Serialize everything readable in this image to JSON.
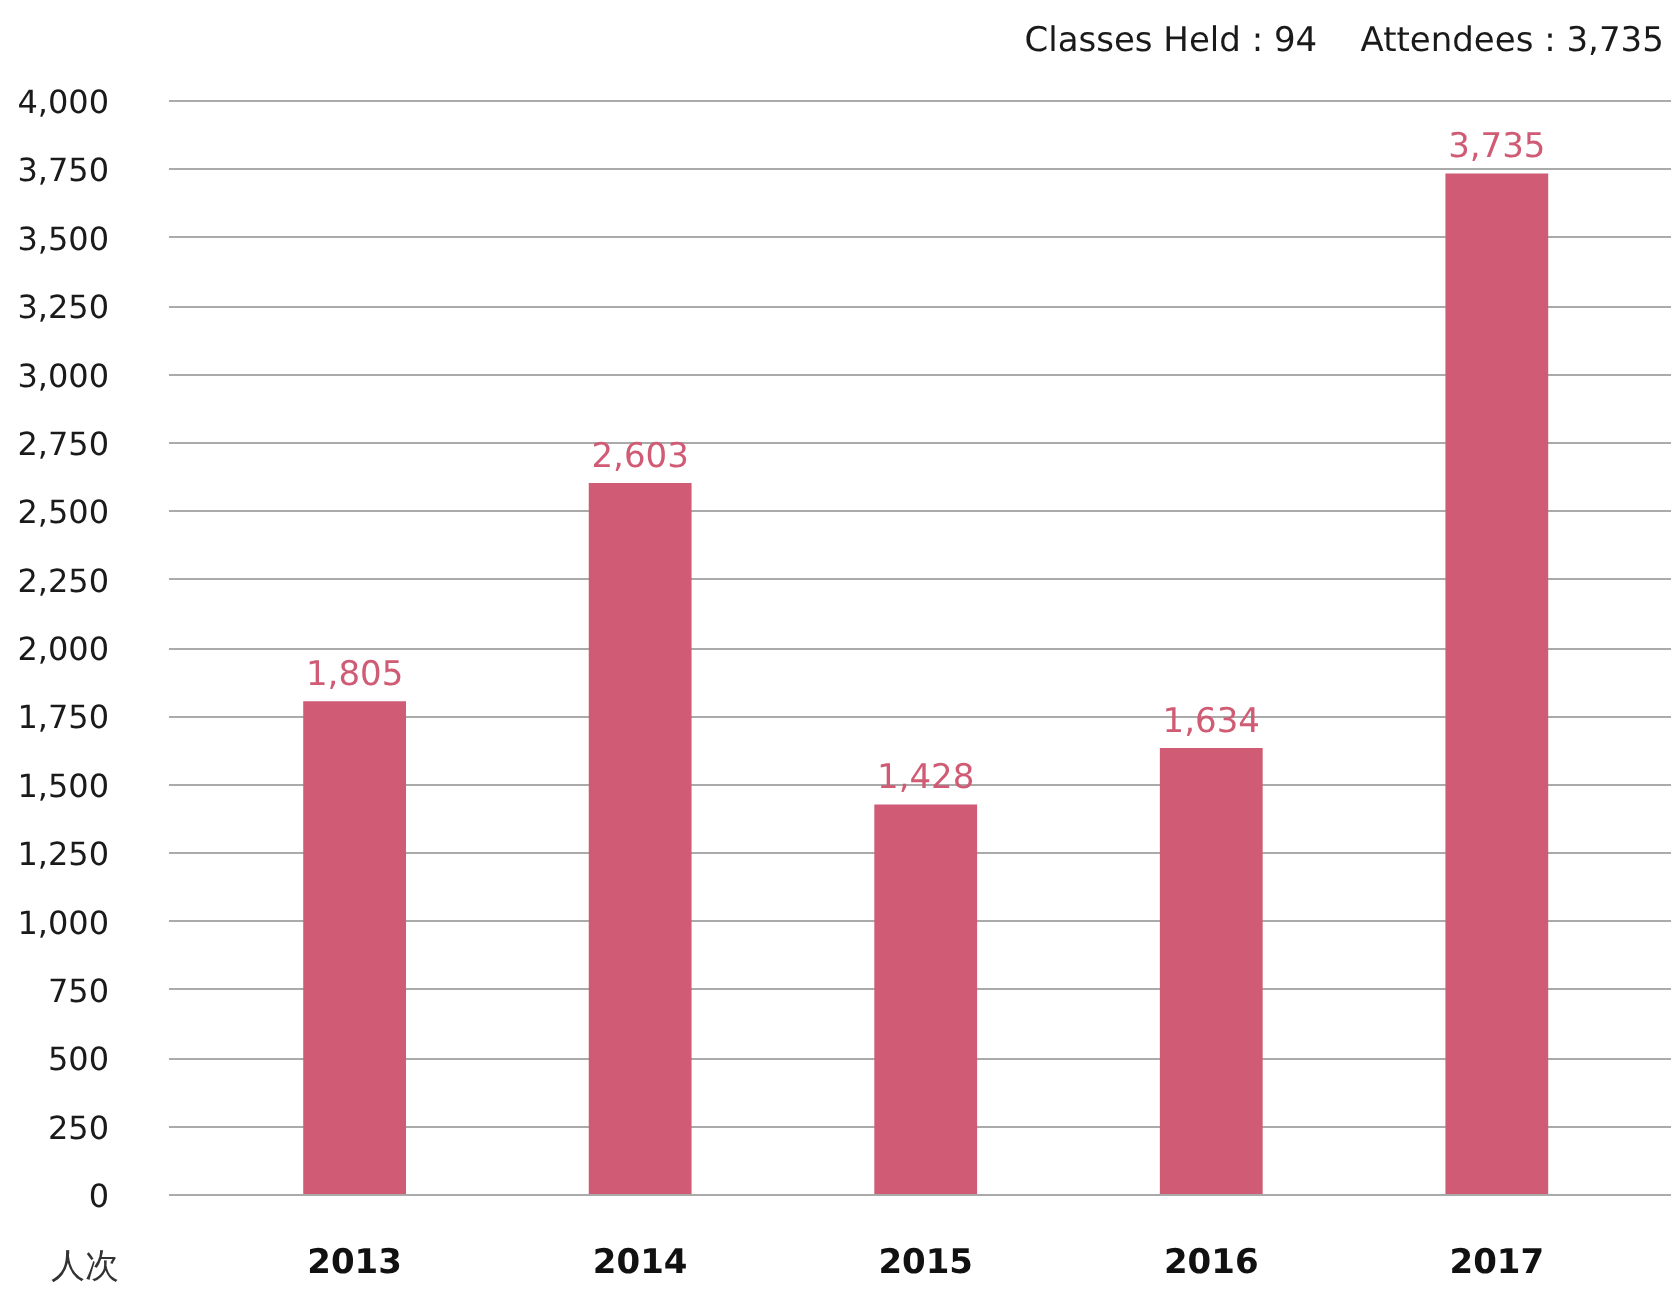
{
  "chart_data": {
    "type": "bar",
    "ylabel": "人次",
    "annotations": [
      "Classes Held : 94",
      "Attendees : 3,735"
    ],
    "categories": [
      "2013",
      "2014",
      "2015",
      "2016",
      "2017"
    ],
    "values": [
      1805,
      2603,
      1428,
      1634,
      3735
    ],
    "color": "#d05b74",
    "value_labels": [
      "1,805",
      "2,603",
      "1,428",
      "1,634",
      "3,735"
    ],
    "ylim": [
      0,
      4000
    ],
    "yticks": [
      0,
      250,
      500,
      750,
      {
        "value": 1000,
        "label": "1,000"
      },
      {
        "value": 1250,
        "label": "1,250"
      },
      {
        "value": 1500,
        "label": "1,500"
      },
      {
        "value": 1750,
        "label": "1,750"
      },
      {
        "value": 2000,
        "label": "2,000"
      },
      {
        "value": 2250,
        "label": "2,250"
      },
      {
        "value": 2500,
        "label": "2,500"
      },
      {
        "value": 2750,
        "label": "2,750"
      },
      {
        "value": 3000,
        "label": "3,000"
      },
      {
        "value": 3250,
        "label": "3,250"
      },
      {
        "value": 3500,
        "label": "3,500"
      },
      {
        "value": 3750,
        "label": "3,750"
      },
      {
        "value": 4000,
        "label": "4,000"
      }
    ],
    "grid": "y"
  }
}
